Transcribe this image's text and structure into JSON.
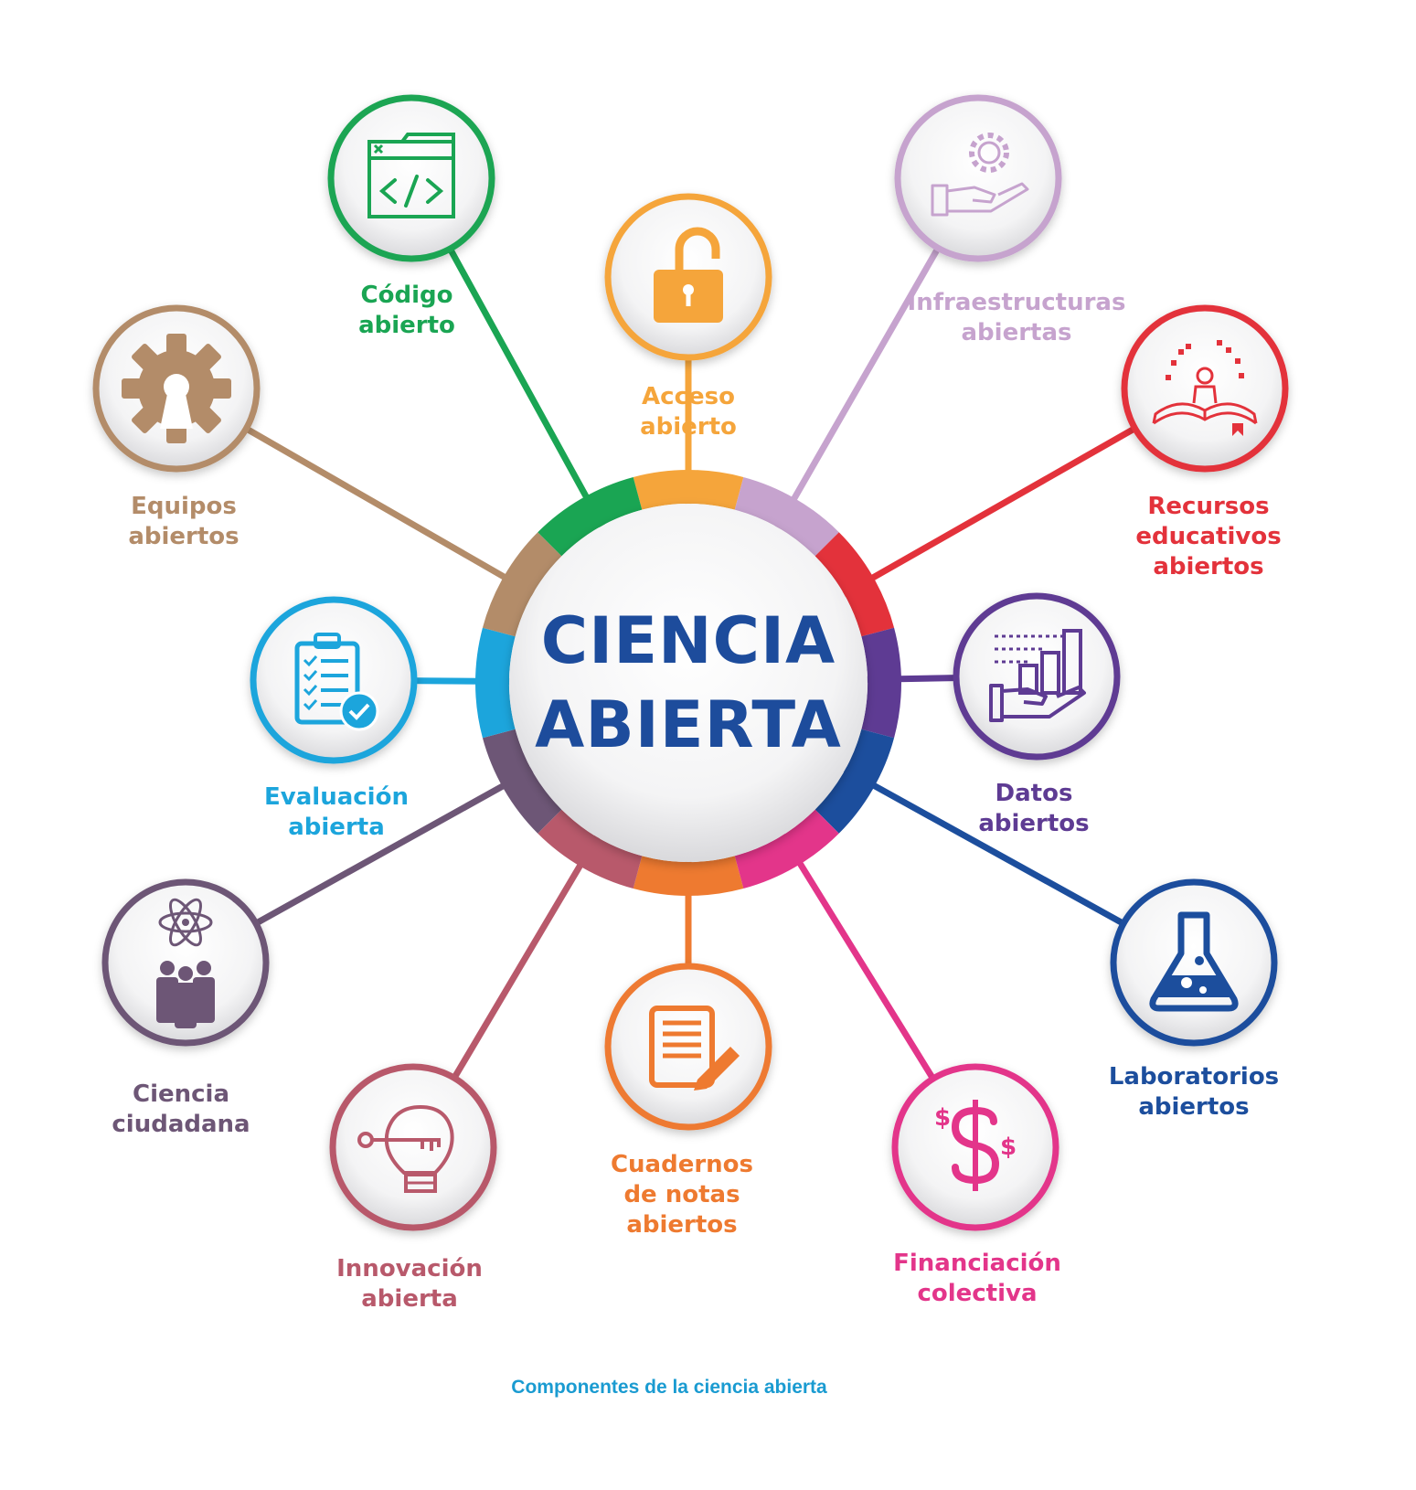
{
  "center": {
    "line1": "CIENCIA",
    "line2": "ABIERTA",
    "color": "#1d4c9c"
  },
  "caption": "Componentes de la ciencia abierta",
  "components": [
    {
      "id": "codigo",
      "lines": [
        "Código",
        "abierto"
      ],
      "color": "#1aa553",
      "icon": "code-window-icon"
    },
    {
      "id": "acceso",
      "lines": [
        "Acceso",
        "abierto"
      ],
      "color": "#f5a53b",
      "icon": "open-padlock-icon"
    },
    {
      "id": "infraestructuras",
      "lines": [
        "Infraestructuras",
        "abiertas"
      ],
      "color": "#c6a3ce",
      "icon": "hand-gear-icon"
    },
    {
      "id": "recursos",
      "lines": [
        "Recursos",
        "educativos",
        "abiertos"
      ],
      "color": "#e3323b",
      "icon": "open-book-reader-icon"
    },
    {
      "id": "datos",
      "lines": [
        "Datos",
        "abiertos"
      ],
      "color": "#5e3b93",
      "icon": "hand-bar-chart-icon"
    },
    {
      "id": "laboratorios",
      "lines": [
        "Laboratorios",
        "abiertos"
      ],
      "color": "#1c4e9d",
      "icon": "flask-icon"
    },
    {
      "id": "financiacion",
      "lines": [
        "Financiación",
        "colectiva"
      ],
      "color": "#e3358a",
      "icon": "dollar-sign-icon"
    },
    {
      "id": "cuadernos",
      "lines": [
        "Cuadernos",
        "de notas",
        "abiertos"
      ],
      "color": "#ee7a30",
      "icon": "notebook-pen-icon"
    },
    {
      "id": "innovacion",
      "lines": [
        "Innovación",
        "abierta"
      ],
      "color": "#b8596b",
      "icon": "bulb-key-icon"
    },
    {
      "id": "ciudadana",
      "lines": [
        "Ciencia",
        "ciudadana"
      ],
      "color": "#6d5676",
      "icon": "people-atom-icon"
    },
    {
      "id": "evaluacion",
      "lines": [
        "Evaluación",
        "abierta"
      ],
      "color": "#1ca5dc",
      "icon": "clipboard-check-icon"
    },
    {
      "id": "equipos",
      "lines": [
        "Equipos",
        "abiertos"
      ],
      "color": "#b38c69",
      "icon": "open-hardware-gear-icon"
    }
  ],
  "ring_order": [
    "acceso",
    "infraestructuras",
    "recursos",
    "datos",
    "laboratorios",
    "financiacion",
    "cuadernos",
    "innovacion",
    "ciudadana",
    "evaluacion",
    "equipos",
    "codigo"
  ]
}
